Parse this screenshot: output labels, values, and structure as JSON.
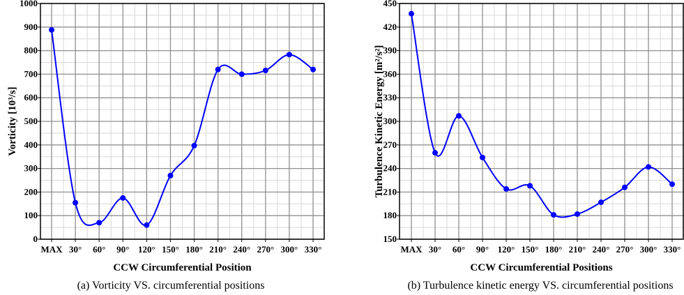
{
  "chart_data": [
    {
      "type": "line",
      "categories": [
        "MAX",
        "30°",
        "60°",
        "90°",
        "120°",
        "150°",
        "180°",
        "210°",
        "240°",
        "270°",
        "300°",
        "330°"
      ],
      "values": [
        888,
        155,
        70,
        175,
        60,
        270,
        397,
        720,
        700,
        716,
        783,
        720
      ],
      "xlabel": "CCW Circumferential Position",
      "ylabel": "Vorticity [10³/s]",
      "ylim": [
        0,
        1000
      ],
      "yticks": [
        0,
        100,
        200,
        300,
        400,
        500,
        600,
        700,
        800,
        900,
        1000
      ],
      "caption": "(a) Vorticity VS. circumferential positions",
      "grid": true,
      "smooth": true,
      "color": "#0000ff"
    },
    {
      "type": "line",
      "categories": [
        "MAX",
        "30°",
        "60°",
        "90°",
        "120°",
        "150°",
        "180°",
        "210°",
        "240°",
        "270°",
        "300°",
        "330°"
      ],
      "values": [
        437,
        260,
        307,
        254,
        214,
        218,
        181,
        182,
        197,
        216,
        242,
        220
      ],
      "xlabel": "CCW Circumferential Positions",
      "ylabel": "Turbulence Kinetic Energy [m²/s²]",
      "ylim": [
        150,
        450
      ],
      "yticks": [
        150,
        180,
        210,
        240,
        270,
        300,
        330,
        360,
        390,
        420,
        450
      ],
      "caption": "(b) Turbulence kinetic energy VS. circumferential positions",
      "grid": true,
      "smooth": true,
      "color": "#0000ff"
    }
  ]
}
